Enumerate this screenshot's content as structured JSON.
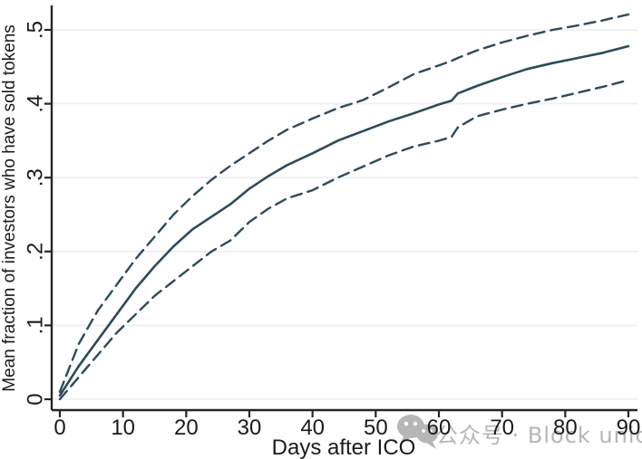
{
  "watermark": {
    "text": "公众号 · Block unicorn",
    "icon": "wechat-icon",
    "color": "#b6b6b6"
  },
  "colors": {
    "line": "#2d4b59",
    "grid": "#e9eef0",
    "axis": "#262626",
    "text": "#1b1b1b",
    "background": "#ffffff"
  },
  "chart_data": {
    "type": "line",
    "title": "",
    "xlabel": "Days after ICO",
    "ylabel": "Mean fraction of investors who have sold tokens",
    "xlim": [
      0,
      90
    ],
    "ylim": [
      0,
      0.53
    ],
    "grid": "horizontal",
    "legend": "none",
    "x_ticks": [
      0,
      10,
      20,
      30,
      40,
      50,
      60,
      70,
      80,
      90
    ],
    "y_ticks": [
      0,
      0.1,
      0.2,
      0.3,
      0.4,
      0.5
    ],
    "y_tick_labels": [
      "0",
      ".1",
      ".2",
      ".3",
      ".4",
      ".5"
    ],
    "x": [
      0,
      3,
      6,
      9,
      12,
      15,
      18,
      21,
      24,
      27,
      30,
      33,
      36,
      40,
      44,
      48,
      52,
      56,
      60,
      62,
      63,
      66,
      70,
      74,
      78,
      82,
      86,
      90
    ],
    "series": [
      {
        "name": "mean",
        "style": "solid",
        "values": [
          0.005,
          0.045,
          0.08,
          0.115,
          0.15,
          0.18,
          0.207,
          0.23,
          0.247,
          0.264,
          0.285,
          0.302,
          0.317,
          0.333,
          0.35,
          0.363,
          0.376,
          0.387,
          0.399,
          0.404,
          0.414,
          0.424,
          0.436,
          0.447,
          0.455,
          0.462,
          0.469,
          0.478
        ]
      },
      {
        "name": "upper-confidence-band",
        "style": "dashed",
        "values": [
          0.01,
          0.075,
          0.12,
          0.155,
          0.19,
          0.22,
          0.25,
          0.275,
          0.297,
          0.316,
          0.333,
          0.35,
          0.365,
          0.38,
          0.394,
          0.405,
          0.422,
          0.44,
          0.452,
          0.458,
          0.462,
          0.472,
          0.483,
          0.492,
          0.5,
          0.506,
          0.513,
          0.521
        ]
      },
      {
        "name": "lower-confidence-band",
        "style": "dashed",
        "values": [
          0.0,
          0.03,
          0.06,
          0.09,
          0.115,
          0.14,
          0.16,
          0.18,
          0.2,
          0.215,
          0.24,
          0.258,
          0.272,
          0.283,
          0.3,
          0.315,
          0.33,
          0.342,
          0.35,
          0.355,
          0.368,
          0.383,
          0.392,
          0.4,
          0.407,
          0.415,
          0.423,
          0.432
        ]
      }
    ]
  }
}
